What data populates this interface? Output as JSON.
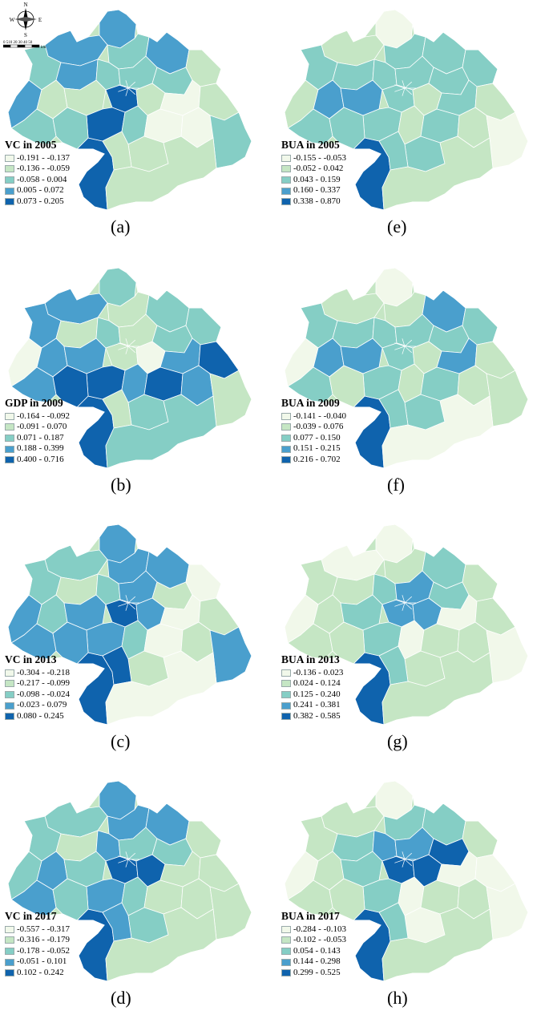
{
  "compass": {
    "n": "N",
    "s": "S",
    "e": "E",
    "w": "W"
  },
  "scalebar": {
    "ticks": "0 510  20  30  40  50",
    "unit": "km"
  },
  "palette": [
    "#f1f8ea",
    "#c5e6c4",
    "#85cec5",
    "#4a9fcd",
    "#0f63ad"
  ],
  "panels": [
    {
      "id": "a",
      "label": "(a)",
      "title": "VC in 2005",
      "legend": [
        "-0.191 - -0.137",
        "-0.136 - -0.059",
        "-0.058 - 0.004",
        "0.005 - 0.072",
        "0.073 - 0.205"
      ],
      "regions": [
        3,
        3,
        2,
        3,
        3,
        1,
        1,
        2,
        2,
        2,
        3,
        4,
        1,
        2,
        4,
        4,
        2,
        2,
        2,
        1,
        0,
        0,
        1,
        0,
        1,
        1,
        2,
        1
      ]
    },
    {
      "id": "b",
      "label": "(b)",
      "title": "GDP in 2009",
      "legend": [
        "-0.164 - -0.092",
        "-0.091 - 0.070",
        "0.071 - 0.187",
        "0.188 - 0.399",
        "0.400 - 0.716"
      ],
      "regions": [
        2,
        3,
        3,
        1,
        0,
        3,
        3,
        1,
        2,
        1,
        2,
        1,
        0,
        2,
        4,
        4,
        3,
        4,
        3,
        2,
        3,
        4,
        4,
        3,
        2,
        1,
        1,
        2
      ]
    },
    {
      "id": "c",
      "label": "(c)",
      "title": "VC in 2013",
      "legend": [
        "-0.304 - -0.218",
        "-0.217 - -0.099",
        "-0.098 - -0.024",
        "-0.023 - 0.079",
        "0.080 - 0.245"
      ],
      "regions": [
        3,
        2,
        2,
        1,
        3,
        2,
        3,
        3,
        2,
        3,
        3,
        4,
        3,
        1,
        4,
        3,
        3,
        3,
        2,
        0,
        0,
        0,
        1,
        1,
        1,
        4,
        3,
        0
      ]
    },
    {
      "id": "d",
      "label": "(d)",
      "title": "VC in 2017",
      "legend": [
        "-0.557 - -0.317",
        "-0.316 - -0.179",
        "-0.178 - -0.052",
        "-0.051 - 0.101",
        "0.102 - 0.242"
      ],
      "regions": [
        3,
        2,
        2,
        1,
        2,
        3,
        2,
        3,
        3,
        2,
        3,
        4,
        4,
        2,
        4,
        3,
        3,
        2,
        2,
        1,
        1,
        1,
        1,
        1,
        2,
        3,
        1,
        1
      ]
    },
    {
      "id": "e",
      "label": "(e)",
      "title": "BUA in 2005",
      "legend": [
        "-0.155 - -0.053",
        "-0.052 - 0.042",
        "0.043 - 0.159",
        "0.160 - 0.337",
        "0.338 - 0.870"
      ],
      "regions": [
        0,
        1,
        2,
        2,
        1,
        3,
        3,
        2,
        2,
        2,
        2,
        2,
        1,
        2,
        4,
        2,
        2,
        2,
        1,
        2,
        2,
        2,
        1,
        1,
        2,
        2,
        0,
        1
      ]
    },
    {
      "id": "f",
      "label": "(f)",
      "title": "BUA in 2009",
      "legend": [
        "-0.141 - -0.040",
        "-0.039 - 0.076",
        "0.077 - 0.150",
        "0.151 - 0.215",
        "0.216 - 0.702"
      ],
      "regions": [
        0,
        1,
        2,
        2,
        0,
        3,
        3,
        1,
        2,
        2,
        3,
        2,
        1,
        2,
        4,
        2,
        2,
        1,
        1,
        2,
        3,
        2,
        1,
        1,
        2,
        2,
        1,
        0
      ]
    },
    {
      "id": "g",
      "label": "(g)",
      "title": "BUA in 2013",
      "legend": [
        "-0.136 - 0.023",
        "0.024 - 0.124",
        "0.125 - 0.240",
        "0.241 - 0.381",
        "0.382 - 0.585"
      ],
      "regions": [
        0,
        0,
        1,
        1,
        0,
        1,
        2,
        1,
        2,
        3,
        2,
        3,
        3,
        2,
        4,
        2,
        1,
        1,
        0,
        1,
        0,
        1,
        1,
        1,
        1,
        2,
        0,
        1
      ]
    },
    {
      "id": "h",
      "label": "(h)",
      "title": "BUA in 2017",
      "legend": [
        "-0.284 - -0.103",
        "-0.102 - -0.053",
        "0.054 - 0.143",
        "0.144 - 0.298",
        "0.299 - 0.525"
      ],
      "regions": [
        0,
        1,
        1,
        2,
        0,
        1,
        2,
        2,
        3,
        3,
        2,
        4,
        4,
        4,
        4,
        2,
        1,
        1,
        0,
        1,
        0,
        1,
        0,
        1,
        0,
        2,
        0,
        1
      ]
    }
  ]
}
